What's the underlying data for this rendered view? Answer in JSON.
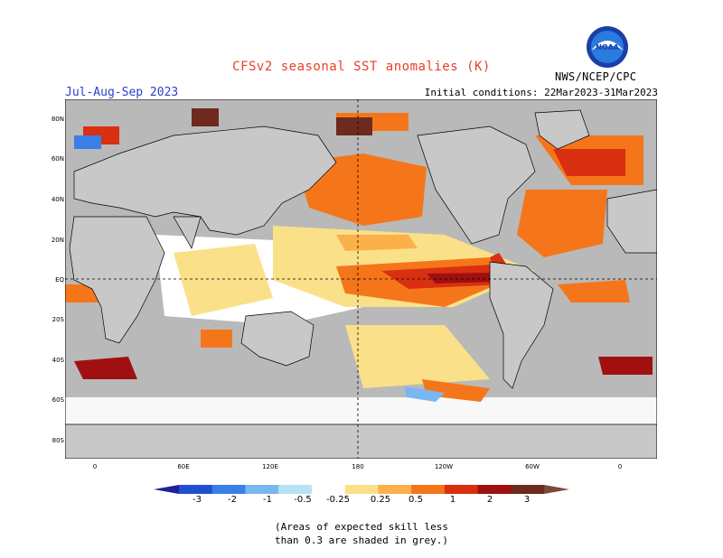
{
  "title": "CFSv2 seasonal SST anomalies (K)",
  "season": "Jul-Aug-Sep 2023",
  "initial_conditions": "Initial conditions: 22Mar2023-31Mar2023",
  "agency": "NWS/NCEP/CPC",
  "logo_text": "NOAA",
  "lat_labels": [
    "80N",
    "60N",
    "40N",
    "20N",
    "EQ",
    "20S",
    "40S",
    "60S",
    "80S"
  ],
  "lon_labels": [
    "0",
    "60E",
    "120E",
    "180",
    "120W",
    "60W",
    "0"
  ],
  "colorbar_labels": [
    "-3",
    "-2",
    "-1",
    "-0.5",
    "-0.25",
    "0.25",
    "0.5",
    "1",
    "2",
    "3"
  ],
  "colorbar_colors": [
    "#1f1f9a",
    "#1f4fd0",
    "#3a7ee8",
    "#78b7f0",
    "#b7e2f6",
    "#ffffff",
    "#fbe08a",
    "#fcb04a",
    "#f5761a",
    "#d83010",
    "#a01010",
    "#6e2a1e",
    "#7a4a3a"
  ],
  "note_line1": "(Areas of expected skill less",
  "note_line2": "than 0.3 are shaded in grey.)",
  "colors": {
    "land": "#c8c8c8",
    "skill_grey": "#b4b4b4",
    "title_red": "#e8402a",
    "season_blue": "#2a3fd0"
  }
}
